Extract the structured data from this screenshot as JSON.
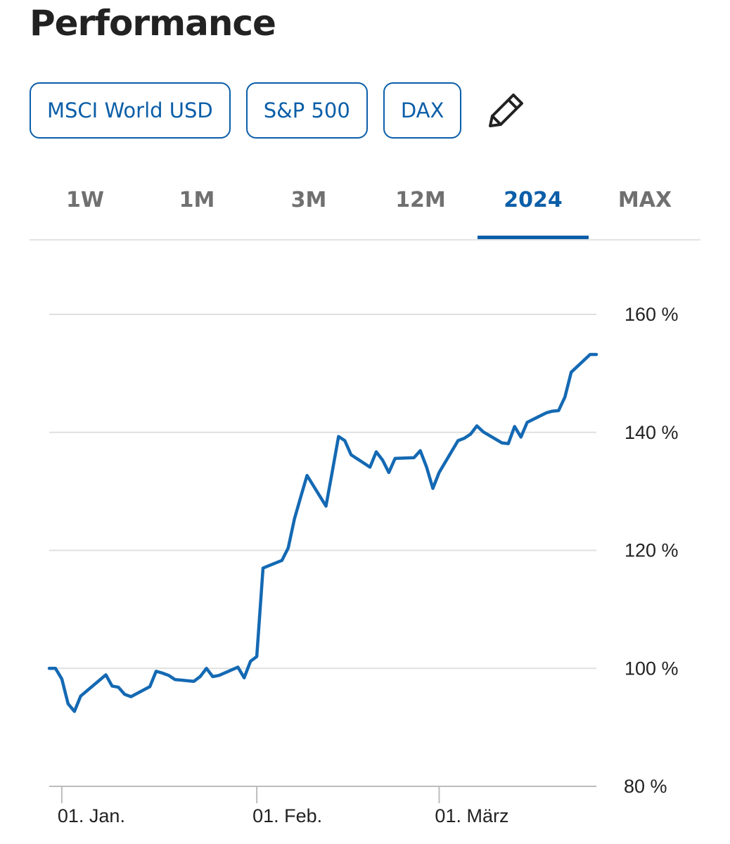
{
  "header": {
    "title": "Performance"
  },
  "compare": {
    "chips": [
      {
        "label": "MSCI World USD"
      },
      {
        "label": "S&P 500"
      },
      {
        "label": "DAX"
      }
    ],
    "edit_icon": "pencil-icon"
  },
  "tabs": [
    {
      "label": "1W",
      "active": false
    },
    {
      "label": "1M",
      "active": false
    },
    {
      "label": "3M",
      "active": false
    },
    {
      "label": "12M",
      "active": false
    },
    {
      "label": "2024",
      "active": true
    },
    {
      "label": "MAX",
      "active": false
    }
  ],
  "colors": {
    "accent": "#0b5ea8",
    "line": "#1469b3",
    "grid": "#e0e0e0"
  },
  "chart_data": {
    "type": "line",
    "title": "",
    "xlabel": "",
    "ylabel": "",
    "ylim": [
      80,
      160
    ],
    "xlim": [
      "2023-12-30",
      "2024-03-26"
    ],
    "y_ticks": [
      {
        "value": 160,
        "label": "160 %"
      },
      {
        "value": 140,
        "label": "140 %"
      },
      {
        "value": 120,
        "label": "120 %"
      },
      {
        "value": 100,
        "label": "100 %"
      },
      {
        "value": 80,
        "label": "80 %"
      }
    ],
    "x_ticks": [
      {
        "value": "2024-01-01",
        "label": "01. Jan."
      },
      {
        "value": "2024-02-01",
        "label": "01. Feb."
      },
      {
        "value": "2024-03-01",
        "label": "01. März"
      }
    ],
    "grid": true,
    "series": [
      {
        "x": [
          "2023-12-30",
          "2023-12-31",
          "2024-01-01",
          "2024-01-02",
          "2024-01-03",
          "2024-01-04",
          "2024-01-05",
          "2024-01-08",
          "2024-01-09",
          "2024-01-10",
          "2024-01-11",
          "2024-01-12",
          "2024-01-15",
          "2024-01-16",
          "2024-01-17",
          "2024-01-18",
          "2024-01-19",
          "2024-01-22",
          "2024-01-23",
          "2024-01-24",
          "2024-01-25",
          "2024-01-26",
          "2024-01-29",
          "2024-01-30",
          "2024-01-31",
          "2024-02-01",
          "2024-02-02",
          "2024-02-05",
          "2024-02-06",
          "2024-02-07",
          "2024-02-08",
          "2024-02-09",
          "2024-02-12",
          "2024-02-13",
          "2024-02-14",
          "2024-02-15",
          "2024-02-16",
          "2024-02-19",
          "2024-02-20",
          "2024-02-21",
          "2024-02-22",
          "2024-02-23",
          "2024-02-26",
          "2024-02-27",
          "2024-02-28",
          "2024-02-29",
          "2024-03-01",
          "2024-03-04",
          "2024-03-05",
          "2024-03-06",
          "2024-03-07",
          "2024-03-08",
          "2024-03-11",
          "2024-03-12",
          "2024-03-13",
          "2024-03-14",
          "2024-03-15",
          "2024-03-18",
          "2024-03-19",
          "2024-03-20",
          "2024-03-21",
          "2024-03-22",
          "2024-03-25",
          "2024-03-26"
        ],
        "values": [
          100,
          100,
          98.2,
          94,
          92.7,
          95.3,
          96.2,
          98.9,
          97,
          96.8,
          95.6,
          95.2,
          96.9,
          99.5,
          99.2,
          98.8,
          98.1,
          97.8,
          98.6,
          100,
          98.6,
          98.8,
          100.2,
          98.4,
          101.2,
          102,
          117,
          118.3,
          120.4,
          125.4,
          129.1,
          132.7,
          127.5,
          133.3,
          139.3,
          138.6,
          136.2,
          134.1,
          136.7,
          135.3,
          133.2,
          135.6,
          135.7,
          136.9,
          134.1,
          130.5,
          133.2,
          138.6,
          139,
          139.7,
          141.1,
          140.1,
          138.2,
          138.1,
          141,
          139.2,
          141.7,
          143.3,
          143.6,
          143.7,
          146,
          150.2,
          153.2,
          153.2
        ]
      }
    ]
  }
}
